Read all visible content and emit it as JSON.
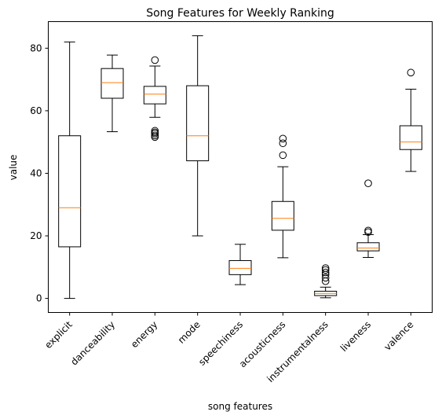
{
  "chart_data": {
    "type": "box",
    "title": "Song Features for Weekly Ranking",
    "xlabel": "song features",
    "ylabel": "value",
    "ylim": [
      -4.5,
      88.5
    ],
    "yticks": [
      0,
      20,
      40,
      60,
      80
    ],
    "grid": false,
    "colors": {
      "median": "#ff7f0e",
      "box": "#000000"
    },
    "categories": [
      "explicit",
      "danceability",
      "energy",
      "mode",
      "speechiness",
      "acousticness",
      "instrumentalness",
      "liveness",
      "valence"
    ],
    "boxes": [
      {
        "whislo": 0,
        "q1": 16.5,
        "med": 29,
        "q3": 52,
        "whishi": 82,
        "fliers": []
      },
      {
        "whislo": 53.3,
        "q1": 64,
        "med": 69,
        "q3": 73.5,
        "whishi": 77.8,
        "fliers": []
      },
      {
        "whislo": 57.9,
        "q1": 62.2,
        "med": 65.3,
        "q3": 67.8,
        "whishi": 74.3,
        "fliers": [
          76.2,
          53.6,
          53.1,
          52.7,
          52.1,
          51.6
        ]
      },
      {
        "whislo": 20,
        "q1": 44,
        "med": 52,
        "q3": 68,
        "whishi": 84,
        "fliers": []
      },
      {
        "whislo": 4.4,
        "q1": 7.6,
        "med": 9.6,
        "q3": 12.1,
        "whishi": 17.3,
        "fliers": []
      },
      {
        "whislo": 13,
        "q1": 21.8,
        "med": 25.6,
        "q3": 31,
        "whishi": 42.1,
        "fliers": [
          45.8,
          49.6,
          51.1
        ]
      },
      {
        "whislo": 0.2,
        "q1": 0.9,
        "med": 1.6,
        "q3": 2.3,
        "whishi": 3.6,
        "fliers": [
          5.5,
          6.6,
          7.6,
          8.3,
          9.1,
          9.7
        ]
      },
      {
        "whislo": 13.1,
        "q1": 15.2,
        "med": 16.1,
        "q3": 17.8,
        "whishi": 20.4,
        "fliers": [
          21.2,
          21.7,
          36.8
        ]
      },
      {
        "whislo": 40.6,
        "q1": 47.6,
        "med": 50,
        "q3": 55.2,
        "whishi": 66.9,
        "fliers": [
          72.2
        ]
      }
    ]
  }
}
